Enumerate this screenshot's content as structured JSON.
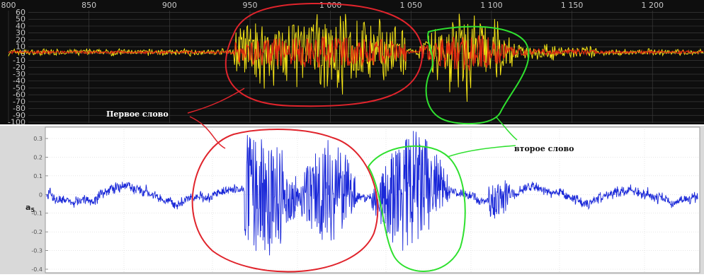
{
  "chart_data": [
    {
      "type": "line",
      "x_ticks": [
        "800",
        "850",
        "900",
        "950",
        "1 000",
        "1 050",
        "1 100",
        "1 150",
        "1 200"
      ],
      "y_ticks": [
        "60",
        "50",
        "40",
        "30",
        "20",
        "10",
        "0",
        "-10",
        "-20",
        "-30",
        "-40",
        "-50",
        "-60",
        "-70",
        "-80",
        "-90",
        "-100"
      ],
      "x_range": [
        800,
        1232
      ],
      "ylim": [
        -100,
        60
      ],
      "grid": true,
      "colors": {
        "background": "#0e0e0e",
        "grid": "#3a3a3a",
        "signal": "#f4e416",
        "envelope": "#e02a10"
      },
      "annotation": "Первое слово"
    },
    {
      "type": "line",
      "ylabel": "a",
      "ylabel_sub": "5",
      "y_ticks": [
        "0.3",
        "0.2",
        "0.1",
        "0",
        "-0.1",
        "-0.2",
        "-0.3",
        "-0.4"
      ],
      "ylim": [
        -0.42,
        0.36
      ],
      "grid": true,
      "colors": {
        "background": "#ffffff",
        "grid": "#d8d8d8",
        "signal": "#1a28d8"
      },
      "annotation": "второе слово"
    }
  ],
  "annotation_colors": {
    "first_word": "#e0242c",
    "second_word": "#2fe02f"
  }
}
